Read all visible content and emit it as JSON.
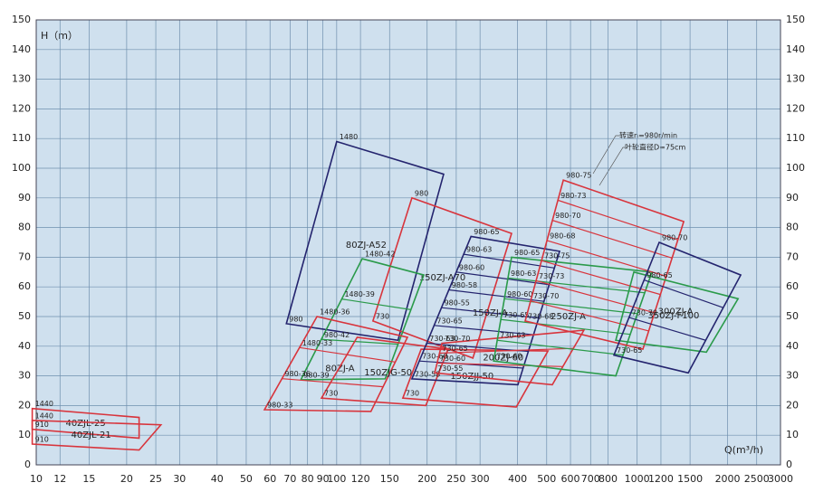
{
  "chart_data": {
    "type": "region",
    "y_label": "H（m）",
    "x_label": "Q(m³/h)",
    "log_x": true,
    "grid": true,
    "xlim": [
      10,
      3000
    ],
    "ylim": [
      0,
      150
    ],
    "xticks": [
      10,
      12,
      15,
      20,
      25,
      30,
      40,
      50,
      60,
      70,
      80,
      90,
      100,
      120,
      150,
      200,
      250,
      300,
      400,
      500,
      600,
      700,
      800,
      1000,
      1200,
      1500,
      2000,
      2500,
      3000
    ],
    "yticks": [
      0,
      10,
      20,
      30,
      40,
      50,
      60,
      70,
      80,
      90,
      100,
      110,
      120,
      130,
      140,
      150
    ],
    "annotations": [
      "转速n=980r/min",
      "叶轮直径D=75cm"
    ],
    "regions": [
      {
        "name": "40ZJL-25",
        "color": "#d8343c",
        "q": [
          9.7,
          22,
          22,
          9.7
        ],
        "h": [
          19,
          16,
          9,
          12
        ],
        "curves": [
          "1440",
          "910"
        ]
      },
      {
        "name": "40ZJL-21",
        "color": "#d8343c",
        "q": [
          9.7,
          26,
          22,
          9.7
        ],
        "h": [
          15,
          13.5,
          5,
          7
        ],
        "curves": [
          "1440",
          "910"
        ]
      },
      {
        "name": "80ZJ-A52",
        "color": "#24246e",
        "q": [
          100,
          227,
          160,
          68
        ],
        "h": [
          109,
          98,
          42,
          47.6
        ],
        "curves": [
          "1480",
          "980"
        ]
      },
      {
        "name": "150ZJ-A70",
        "color": "#d8343c",
        "q": [
          178,
          382,
          284,
          132
        ],
        "h": [
          90,
          78,
          36,
          48.5
        ],
        "curves": [
          "980",
          "730"
        ]
      },
      {
        "color": "#2a9a4a",
        "q": [
          121.6,
          195,
          145,
          76
        ],
        "h": [
          69.5,
          64,
          29,
          28.7
        ],
        "curves": [
          "1480-42",
          "1480-39",
          "980-42",
          "980-39"
        ]
      },
      {
        "name": "80ZJ-A",
        "color": "#d8343c",
        "q": [
          86,
          172,
          130,
          57.5
        ],
        "h": [
          50,
          43,
          18,
          18.6
        ],
        "curves": [
          "1480-36",
          "1480-33",
          "980-36",
          "980-33"
        ]
      },
      {
        "name": "150ZJG-50",
        "color": "#d8343c",
        "q": [
          117,
          235,
          198,
          89
        ],
        "h": [
          43,
          39,
          20,
          22.5
        ],
        "curves": [
          "730"
        ]
      },
      {
        "name": "150ZJJ-50",
        "color": "#d8343c",
        "q": [
          191,
          505,
          396,
          166
        ],
        "h": [
          39,
          38.4,
          19.5,
          22.5
        ],
        "curves": [
          "730"
        ]
      },
      {
        "name": "150ZJ-A",
        "color": "#24246e",
        "q": [
          280,
          552,
          401,
          178
        ],
        "h": [
          77,
          72,
          27,
          29
        ],
        "curves": [
          "980-65",
          "980-63",
          "980-60",
          "980-58",
          "980-55",
          "730-65",
          "730-63",
          "730-60",
          "730-58"
        ]
      },
      {
        "name": "200ZJ-60",
        "color": "#d8343c",
        "q": [
          224,
          665,
          522,
          212
        ],
        "h": [
          41,
          45.4,
          27,
          31
        ],
        "curves": [
          "730-70",
          "730-65",
          "730-60",
          "730-55"
        ]
      },
      {
        "name": "250ZJ-A",
        "color": "#2a9a4a",
        "q": [
          382,
          1120,
          849,
          333
        ],
        "h": [
          70,
          65,
          30,
          35
        ],
        "curves": [
          "980-65",
          "980-63",
          "980-60",
          "730-65",
          "730-63",
          "730-60"
        ]
      },
      {
        "color": "#d8343c",
        "q": [
          568,
          1429,
          1045,
          424
        ],
        "h": [
          96,
          82,
          39,
          48.5
        ],
        "curves": [
          "980-75",
          "980-73",
          "980-70",
          "980-68",
          "730-75",
          "730-73",
          "730-70",
          "730-68"
        ]
      },
      {
        "name": "350ZJ-F100",
        "color": "#2a9a4a",
        "q": [
          975,
          2168,
          1700,
          849
        ],
        "h": [
          65,
          56,
          38,
          42
        ],
        "curves": []
      },
      {
        "name": "300ZJ-A",
        "color": "#24246e",
        "q": [
          1184,
          2212,
          1479,
          837
        ],
        "h": [
          75,
          64,
          31,
          37
        ],
        "curves": [
          "980-70",
          "980-65",
          "730-70",
          "730-65"
        ]
      }
    ]
  }
}
